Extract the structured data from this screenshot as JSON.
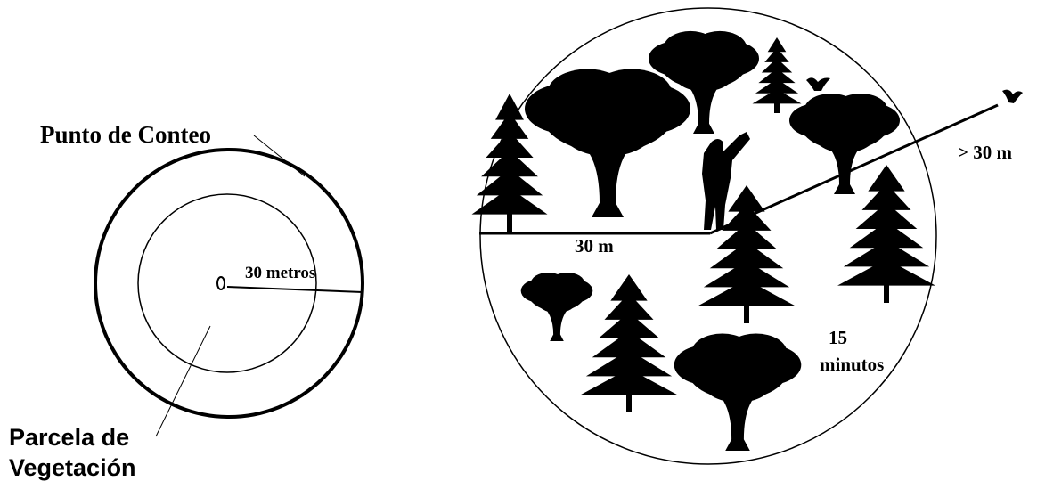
{
  "left_diagram": {
    "title": "Punto de Conteo",
    "radius_label": "30 metros",
    "plot_label": [
      "Parcela de",
      "Vegetación"
    ]
  },
  "right_diagram": {
    "radius_label": "30 m",
    "beyond_label": "> 30 m",
    "time_label": [
      "15",
      "minutos"
    ]
  }
}
